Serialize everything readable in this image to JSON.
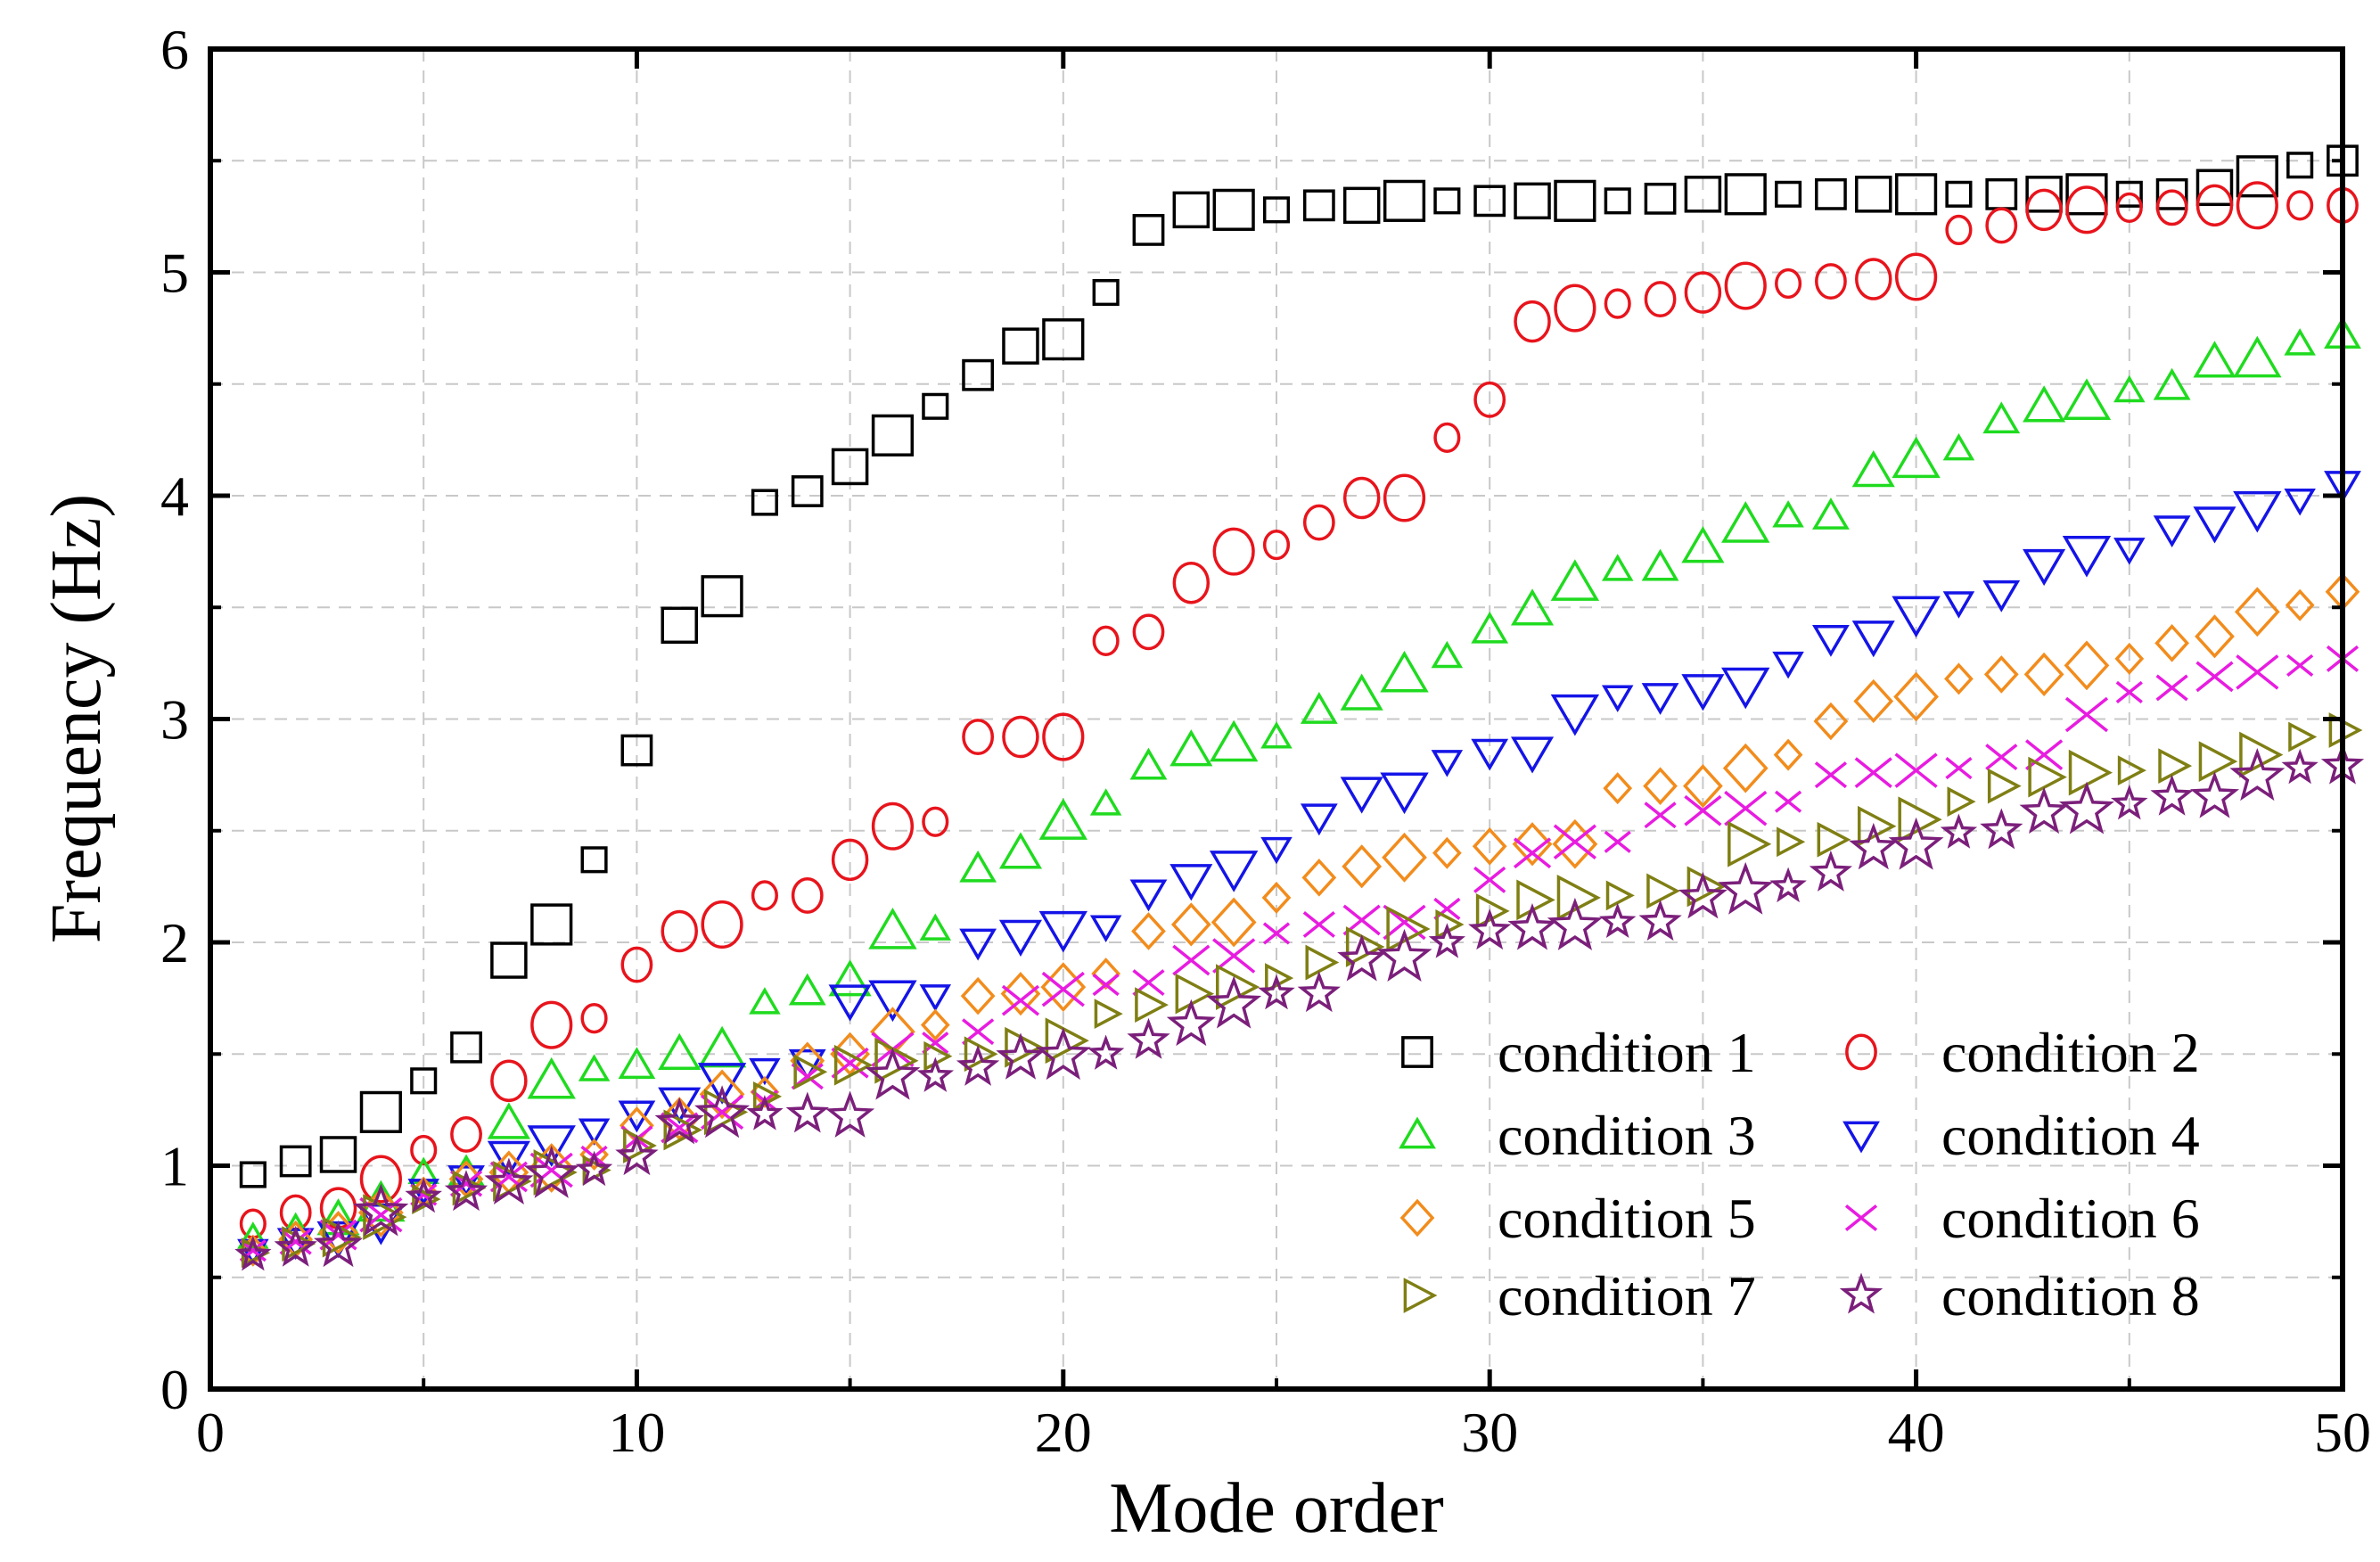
{
  "chart_data": {
    "type": "scatter",
    "title": "",
    "xlabel": "Mode order",
    "ylabel": "Frequency (Hz)",
    "xlim": [
      0,
      50
    ],
    "ylim": [
      0,
      6
    ],
    "xticks": [
      0,
      10,
      20,
      30,
      40,
      50
    ],
    "yticks": [
      0,
      1,
      2,
      3,
      4,
      5,
      6
    ],
    "grid": true,
    "legend_position": "bottom-right",
    "series": [
      {
        "name": "condition 1",
        "marker": "square",
        "color": "#000000",
        "x": [
          1,
          2,
          3,
          4,
          5,
          6,
          7,
          8,
          9,
          10,
          11,
          12,
          13,
          14,
          15,
          16,
          17,
          18,
          19,
          20,
          21,
          22,
          23,
          24,
          25,
          26,
          27,
          28,
          29,
          30,
          31,
          32,
          33,
          34,
          35,
          36,
          37,
          38,
          39,
          40,
          41,
          42,
          43,
          44,
          45,
          46,
          47,
          48,
          49,
          50
        ],
        "y": [
          0.96,
          1.02,
          1.05,
          1.24,
          1.38,
          1.53,
          1.92,
          2.08,
          2.37,
          2.86,
          3.42,
          3.55,
          3.97,
          4.02,
          4.13,
          4.27,
          4.4,
          4.54,
          4.67,
          4.7,
          4.91,
          5.19,
          5.28,
          5.28,
          5.28,
          5.3,
          5.3,
          5.32,
          5.32,
          5.32,
          5.32,
          5.32,
          5.32,
          5.33,
          5.35,
          5.35,
          5.35,
          5.35,
          5.35,
          5.35,
          5.35,
          5.35,
          5.35,
          5.35,
          5.35,
          5.35,
          5.38,
          5.43,
          5.48,
          5.5
        ]
      },
      {
        "name": "condition 2",
        "marker": "circle",
        "color": "#e8141c",
        "x": [
          1,
          2,
          3,
          4,
          5,
          6,
          7,
          8,
          9,
          10,
          11,
          12,
          13,
          14,
          15,
          16,
          17,
          18,
          19,
          20,
          21,
          22,
          23,
          24,
          25,
          26,
          27,
          28,
          29,
          30,
          31,
          32,
          33,
          34,
          35,
          36,
          37,
          38,
          39,
          40,
          41,
          42,
          43,
          44,
          45,
          46,
          47,
          48,
          49,
          50
        ],
        "y": [
          0.74,
          0.79,
          0.81,
          0.94,
          1.07,
          1.14,
          1.38,
          1.63,
          1.66,
          1.9,
          2.05,
          2.08,
          2.21,
          2.21,
          2.37,
          2.52,
          2.54,
          2.92,
          2.92,
          2.92,
          3.35,
          3.39,
          3.61,
          3.75,
          3.78,
          3.88,
          3.99,
          3.99,
          4.26,
          4.43,
          4.78,
          4.84,
          4.86,
          4.88,
          4.91,
          4.94,
          4.95,
          4.96,
          4.97,
          4.98,
          5.19,
          5.21,
          5.28,
          5.28,
          5.29,
          5.29,
          5.3,
          5.3,
          5.3,
          5.3
        ]
      },
      {
        "name": "condition 3",
        "marker": "triangle-up",
        "color": "#1fdb1f",
        "x": [
          1,
          2,
          3,
          4,
          5,
          6,
          7,
          8,
          9,
          10,
          11,
          12,
          13,
          14,
          15,
          16,
          17,
          18,
          19,
          20,
          21,
          22,
          23,
          24,
          25,
          26,
          27,
          28,
          29,
          30,
          31,
          32,
          33,
          34,
          35,
          36,
          37,
          38,
          39,
          40,
          41,
          42,
          43,
          44,
          45,
          46,
          47,
          48,
          49,
          50
        ],
        "y": [
          0.68,
          0.71,
          0.76,
          0.83,
          0.97,
          0.97,
          1.19,
          1.38,
          1.43,
          1.45,
          1.5,
          1.52,
          1.73,
          1.78,
          1.83,
          2.05,
          2.06,
          2.33,
          2.4,
          2.54,
          2.62,
          2.79,
          2.86,
          2.89,
          2.92,
          3.04,
          3.11,
          3.2,
          3.28,
          3.4,
          3.49,
          3.61,
          3.67,
          3.68,
          3.77,
          3.87,
          3.91,
          3.91,
          4.11,
          4.16,
          4.21,
          4.34,
          4.4,
          4.42,
          4.47,
          4.49,
          4.6,
          4.61,
          4.68,
          4.72
        ]
      },
      {
        "name": "condition 4",
        "marker": "triangle-down",
        "color": "#1414e8",
        "x": [
          1,
          2,
          3,
          4,
          5,
          6,
          7,
          8,
          9,
          10,
          11,
          12,
          13,
          14,
          15,
          16,
          17,
          18,
          19,
          20,
          21,
          22,
          23,
          24,
          25,
          26,
          27,
          28,
          29,
          30,
          31,
          32,
          33,
          34,
          35,
          36,
          37,
          38,
          39,
          40,
          41,
          42,
          43,
          44,
          45,
          46,
          47,
          48,
          49,
          50
        ],
        "y": [
          0.62,
          0.66,
          0.68,
          0.75,
          0.89,
          0.94,
          1.04,
          1.1,
          1.16,
          1.23,
          1.28,
          1.38,
          1.43,
          1.46,
          1.74,
          1.75,
          1.76,
          2.0,
          2.03,
          2.06,
          2.07,
          2.22,
          2.28,
          2.33,
          2.42,
          2.56,
          2.67,
          2.68,
          2.81,
          2.85,
          2.85,
          3.03,
          3.1,
          3.1,
          3.13,
          3.15,
          3.25,
          3.36,
          3.37,
          3.47,
          3.52,
          3.56,
          3.69,
          3.74,
          3.76,
          3.85,
          3.88,
          3.94,
          3.98,
          4.05
        ]
      },
      {
        "name": "condition 5",
        "marker": "diamond",
        "color": "#f28c1c",
        "x": [
          1,
          2,
          3,
          4,
          5,
          6,
          7,
          8,
          9,
          10,
          11,
          12,
          13,
          14,
          15,
          16,
          17,
          18,
          19,
          20,
          21,
          22,
          23,
          24,
          25,
          26,
          27,
          28,
          29,
          30,
          31,
          32,
          33,
          34,
          35,
          36,
          37,
          38,
          39,
          40,
          41,
          42,
          43,
          44,
          45,
          46,
          47,
          48,
          49,
          50
        ],
        "y": [
          0.62,
          0.67,
          0.7,
          0.79,
          0.88,
          0.94,
          0.97,
          0.99,
          1.05,
          1.18,
          1.21,
          1.32,
          1.33,
          1.47,
          1.5,
          1.6,
          1.63,
          1.76,
          1.77,
          1.8,
          1.86,
          2.05,
          2.08,
          2.09,
          2.2,
          2.29,
          2.34,
          2.38,
          2.4,
          2.43,
          2.44,
          2.44,
          2.69,
          2.7,
          2.7,
          2.78,
          2.84,
          2.99,
          3.08,
          3.1,
          3.18,
          3.2,
          3.2,
          3.24,
          3.27,
          3.34,
          3.37,
          3.48,
          3.51,
          3.57
        ]
      },
      {
        "name": "condition 6",
        "marker": "x",
        "color": "#e81ce0",
        "x": [
          1,
          2,
          3,
          4,
          5,
          6,
          7,
          8,
          9,
          10,
          11,
          12,
          13,
          14,
          15,
          16,
          17,
          18,
          19,
          20,
          21,
          22,
          23,
          24,
          25,
          26,
          27,
          28,
          29,
          30,
          31,
          32,
          33,
          34,
          35,
          36,
          37,
          38,
          39,
          40,
          41,
          42,
          43,
          44,
          45,
          46,
          47,
          48,
          49,
          50
        ],
        "y": [
          0.62,
          0.66,
          0.69,
          0.78,
          0.87,
          0.92,
          0.95,
          0.98,
          1.04,
          1.12,
          1.17,
          1.24,
          1.29,
          1.4,
          1.46,
          1.52,
          1.55,
          1.6,
          1.74,
          1.79,
          1.81,
          1.82,
          1.92,
          1.94,
          2.04,
          2.08,
          2.1,
          2.09,
          2.15,
          2.28,
          2.4,
          2.45,
          2.45,
          2.57,
          2.59,
          2.6,
          2.63,
          2.75,
          2.76,
          2.77,
          2.78,
          2.83,
          2.84,
          3.02,
          3.12,
          3.14,
          3.19,
          3.21,
          3.24,
          3.27
        ]
      },
      {
        "name": "condition 7",
        "marker": "triangle-right",
        "color": "#7f7f14",
        "x": [
          1,
          2,
          3,
          4,
          5,
          6,
          7,
          8,
          9,
          10,
          11,
          12,
          13,
          14,
          15,
          16,
          17,
          18,
          19,
          20,
          21,
          22,
          23,
          24,
          25,
          26,
          27,
          28,
          29,
          30,
          31,
          32,
          33,
          34,
          35,
          36,
          37,
          38,
          39,
          40,
          41,
          42,
          43,
          44,
          45,
          46,
          47,
          48,
          49,
          50
        ],
        "y": [
          0.61,
          0.65,
          0.68,
          0.77,
          0.85,
          0.9,
          0.93,
          0.97,
          0.98,
          1.09,
          1.16,
          1.24,
          1.31,
          1.42,
          1.45,
          1.47,
          1.49,
          1.5,
          1.53,
          1.56,
          1.68,
          1.72,
          1.77,
          1.8,
          1.84,
          1.91,
          1.98,
          2.06,
          2.08,
          2.14,
          2.19,
          2.2,
          2.21,
          2.23,
          2.25,
          2.44,
          2.45,
          2.46,
          2.52,
          2.55,
          2.63,
          2.7,
          2.74,
          2.76,
          2.77,
          2.79,
          2.81,
          2.84,
          2.92,
          2.95
        ]
      },
      {
        "name": "condition 8",
        "marker": "star",
        "color": "#7b1f7b",
        "x": [
          1,
          2,
          3,
          4,
          5,
          6,
          7,
          8,
          9,
          10,
          11,
          12,
          13,
          14,
          15,
          16,
          17,
          18,
          19,
          20,
          21,
          22,
          23,
          24,
          25,
          26,
          27,
          28,
          29,
          30,
          31,
          32,
          33,
          34,
          35,
          36,
          37,
          38,
          39,
          40,
          41,
          42,
          43,
          44,
          45,
          46,
          47,
          48,
          49,
          50
        ],
        "y": [
          0.6,
          0.63,
          0.64,
          0.79,
          0.86,
          0.88,
          0.92,
          0.96,
          0.98,
          1.04,
          1.19,
          1.23,
          1.23,
          1.23,
          1.22,
          1.4,
          1.4,
          1.44,
          1.48,
          1.49,
          1.5,
          1.56,
          1.63,
          1.72,
          1.77,
          1.77,
          1.92,
          1.93,
          2.0,
          2.05,
          2.06,
          2.07,
          2.09,
          2.09,
          2.2,
          2.23,
          2.25,
          2.31,
          2.42,
          2.43,
          2.49,
          2.5,
          2.58,
          2.59,
          2.62,
          2.65,
          2.65,
          2.74,
          2.78,
          2.79
        ]
      }
    ]
  }
}
